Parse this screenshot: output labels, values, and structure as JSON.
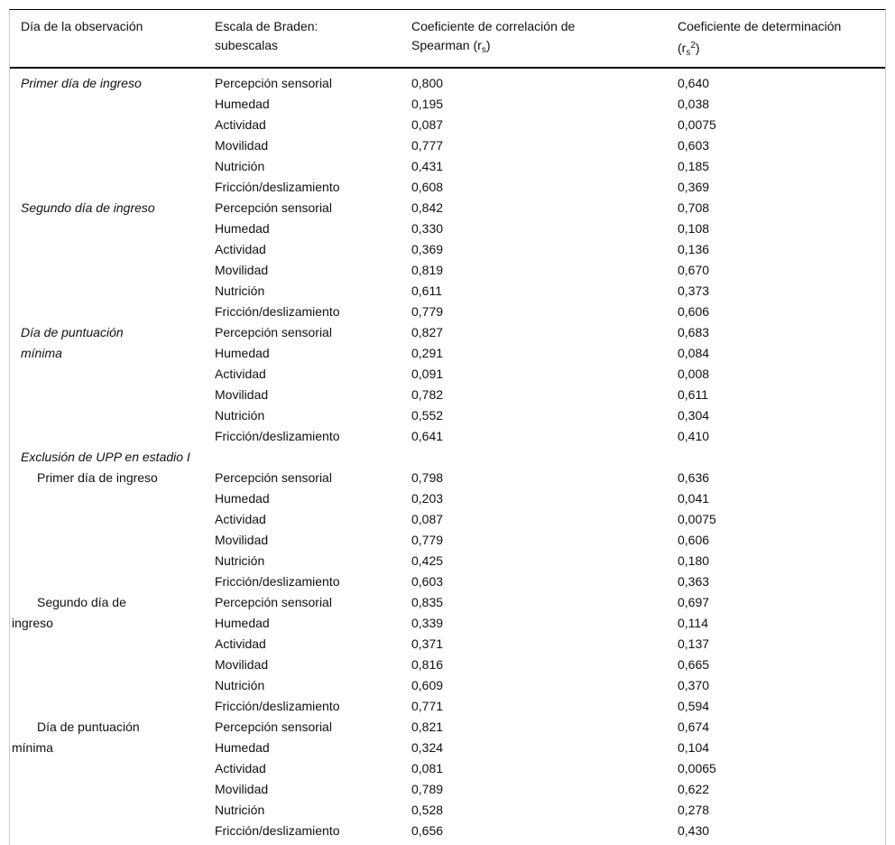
{
  "table": {
    "headers": {
      "col1": "Día de la observación",
      "col2": "Escala de Braden:\nsubescalas",
      "col3_line1": "Coeficiente de correlación de",
      "col3_line2_prefix": "Spearman (r",
      "col3_sub": "s",
      "col3_line2_suffix": ")",
      "col4_line1": "Coeficiente de determinación",
      "col4_line2_prefix": "(r",
      "col4_sub": "s",
      "col4_sup": "2",
      "col4_line2_suffix": ")"
    },
    "sections": [
      {
        "header": null,
        "groups": [
          {
            "day": "Primer día de ingreso",
            "style": "italic",
            "rows": [
              [
                "Percepción sensorial",
                "0,800",
                "0,640"
              ],
              [
                "Humedad",
                "0,195",
                "0,038"
              ],
              [
                "Actividad",
                "0,087",
                "0,0075"
              ],
              [
                "Movilidad",
                "0,777",
                "0,603"
              ],
              [
                "Nutrición",
                "0,431",
                "0,185"
              ],
              [
                "Fricción/deslizamiento",
                "0,608",
                "0,369"
              ]
            ]
          },
          {
            "day": "Segundo día de ingreso",
            "style": "italic",
            "rows": [
              [
                "Percepción sensorial",
                "0,842",
                "0,708"
              ],
              [
                "Humedad",
                "0,330",
                "0,108"
              ],
              [
                "Actividad",
                "0,369",
                "0,136"
              ],
              [
                "Movilidad",
                "0,819",
                "0,670"
              ],
              [
                "Nutrición",
                "0,611",
                "0,373"
              ],
              [
                "Fricción/deslizamiento",
                "0,779",
                "0,606"
              ]
            ]
          },
          {
            "day": "Día de puntuación\nmínima",
            "style": "italic",
            "rows": [
              [
                "Percepción sensorial",
                "0,827",
                "0,683"
              ],
              [
                "Humedad",
                "0,291",
                "0,084"
              ],
              [
                "Actividad",
                "0,091",
                "0,008"
              ],
              [
                "Movilidad",
                "0,782",
                "0,611"
              ],
              [
                "Nutrición",
                "0,552",
                "0,304"
              ],
              [
                "Fricción/deslizamiento",
                "0,641",
                "0,410"
              ]
            ]
          }
        ]
      },
      {
        "header": "Exclusión de UPP en estadio I",
        "groups": [
          {
            "day": "Primer día de ingreso",
            "style": "indent",
            "rows": [
              [
                "Percepción sensorial",
                "0,798",
                "0,636"
              ],
              [
                "Humedad",
                "0,203",
                "0,041"
              ],
              [
                "Actividad",
                "0,087",
                "0,0075"
              ],
              [
                "Movilidad",
                "0,779",
                "0,606"
              ],
              [
                "Nutrición",
                "0,425",
                "0,180"
              ],
              [
                "Fricción/deslizamiento",
                "0,603",
                "0,363"
              ]
            ]
          },
          {
            "day": "Segundo día de\ningreso",
            "style": "indent",
            "rows": [
              [
                "Percepción sensorial",
                "0,835",
                "0,697"
              ],
              [
                "Humedad",
                "0,339",
                "0,114"
              ],
              [
                "Actividad",
                "0,371",
                "0,137"
              ],
              [
                "Movilidad",
                "0,816",
                "0,665"
              ],
              [
                "Nutrición",
                "0,609",
                "0,370"
              ],
              [
                "Fricción/deslizamiento",
                "0,771",
                "0,594"
              ]
            ]
          },
          {
            "day": "Día de puntuación\nmínima",
            "style": "indent",
            "rows": [
              [
                "Percepción sensorial",
                "0,821",
                "0,674"
              ],
              [
                "Humedad",
                "0,324",
                "0,104"
              ],
              [
                "Actividad",
                "0,081",
                "0,0065"
              ],
              [
                "Movilidad",
                "0,789",
                "0,622"
              ],
              [
                "Nutrición",
                "0,528",
                "0,278"
              ],
              [
                "Fricción/deslizamiento",
                "0,656",
                "0,430"
              ]
            ]
          }
        ]
      }
    ]
  }
}
